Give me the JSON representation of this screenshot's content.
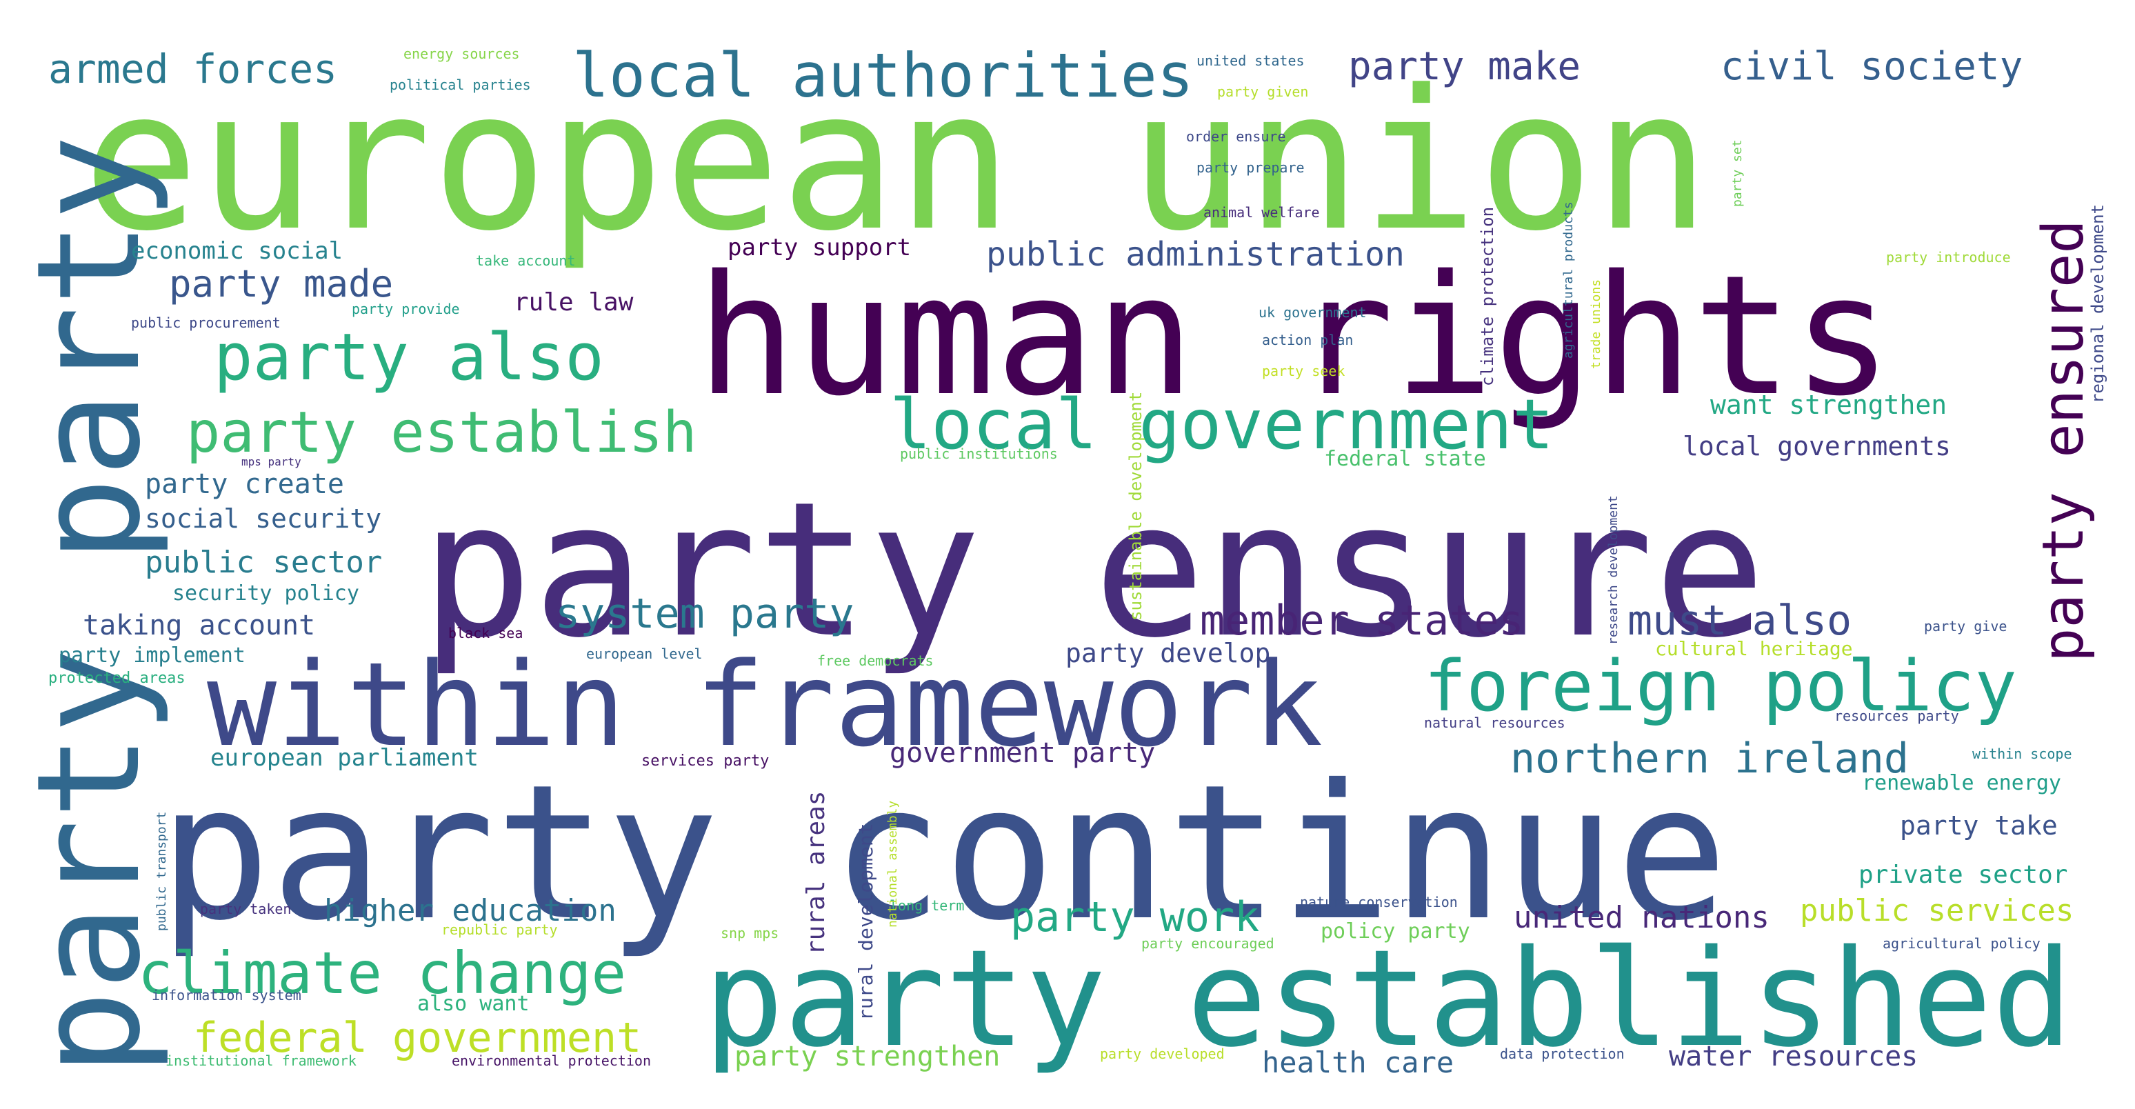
{
  "colors": {
    "background": "#ffffff",
    "palette": [
      "#440154",
      "#482878",
      "#3e4989",
      "#31688e",
      "#26828e",
      "#1f9e89",
      "#35b779",
      "#6ece58",
      "#b5de2b",
      "#fde725"
    ]
  },
  "words": [
    {
      "text": "european union",
      "weight": 1.0,
      "color": "#7ad151"
    },
    {
      "text": "human rights",
      "weight": 0.86,
      "color": "#440154"
    },
    {
      "text": "party ensure",
      "weight": 0.95,
      "color": "#472d7b"
    },
    {
      "text": "party continue",
      "weight": 0.95,
      "color": "#3b528b"
    },
    {
      "text": "within framework",
      "weight": 0.62,
      "color": "#3e4989"
    },
    {
      "text": "party established",
      "weight": 0.7,
      "color": "#21918c"
    },
    {
      "text": "party party",
      "weight": 0.73,
      "color": "#31688e"
    },
    {
      "text": "local authorities",
      "weight": 0.32,
      "color": "#2c728e"
    },
    {
      "text": "local government",
      "weight": 0.35,
      "color": "#22a884"
    },
    {
      "text": "foreign policy",
      "weight": 0.36,
      "color": "#1fa187"
    },
    {
      "text": "party also",
      "weight": 0.33,
      "color": "#28ae80"
    },
    {
      "text": "party establish",
      "weight": 0.29,
      "color": "#3fbc73"
    },
    {
      "text": "climate change",
      "weight": 0.3,
      "color": "#2db27d"
    },
    {
      "text": "party ensured",
      "weight": 0.3,
      "color": "#440154"
    },
    {
      "text": "northern ireland",
      "weight": 0.2,
      "color": "#2c728e"
    },
    {
      "text": "member states",
      "weight": 0.2,
      "color": "#482475"
    },
    {
      "text": "must also",
      "weight": 0.2,
      "color": "#3e4a89"
    },
    {
      "text": "system party",
      "weight": 0.2,
      "color": "#2a788e"
    },
    {
      "text": "party work",
      "weight": 0.2,
      "color": "#22a884"
    },
    {
      "text": "federal government",
      "weight": 0.2,
      "color": "#bddf26"
    },
    {
      "text": "armed forces",
      "weight": 0.2,
      "color": "#2a788e"
    },
    {
      "text": "party make",
      "weight": 0.18,
      "color": "#414487"
    },
    {
      "text": "civil society",
      "weight": 0.18,
      "color": "#355f8d"
    },
    {
      "text": "party made",
      "weight": 0.17,
      "color": "#39568c"
    },
    {
      "text": "public administration",
      "weight": 0.15,
      "color": "#3b528b"
    },
    {
      "text": "higher education",
      "weight": 0.14,
      "color": "#2c728e"
    },
    {
      "text": "united nations",
      "weight": 0.14,
      "color": "#482878"
    },
    {
      "text": "public services",
      "weight": 0.14,
      "color": "#b8de29"
    },
    {
      "text": "party strengthen",
      "weight": 0.12,
      "color": "#7ad151"
    },
    {
      "text": "health care",
      "weight": 0.13,
      "color": "#33638d"
    },
    {
      "text": "water resources",
      "weight": 0.12,
      "color": "#433e85"
    },
    {
      "text": "government party",
      "weight": 0.12,
      "color": "#482878"
    },
    {
      "text": "european parliament",
      "weight": 0.1,
      "color": "#25848e"
    },
    {
      "text": "taking account",
      "weight": 0.12,
      "color": "#3b528b"
    },
    {
      "text": "public sector",
      "weight": 0.13,
      "color": "#287c8e"
    },
    {
      "text": "social security",
      "weight": 0.11,
      "color": "#355f8d"
    },
    {
      "text": "party create",
      "weight": 0.12,
      "color": "#31688e"
    },
    {
      "text": "want strengthen",
      "weight": 0.11,
      "color": "#22a884"
    },
    {
      "text": "local governments",
      "weight": 0.11,
      "color": "#433e85"
    },
    {
      "text": "party develop",
      "weight": 0.11,
      "color": "#3e4989"
    },
    {
      "text": "private sector",
      "weight": 0.1,
      "color": "#1fa187"
    },
    {
      "text": "party take",
      "weight": 0.1,
      "color": "#3b528b"
    },
    {
      "text": "renewable energy",
      "weight": 0.09,
      "color": "#1f9e89"
    },
    {
      "text": "rule law",
      "weight": 0.1,
      "color": "#471164"
    },
    {
      "text": "party support",
      "weight": 0.09,
      "color": "#440154"
    },
    {
      "text": "economic social",
      "weight": 0.09,
      "color": "#26828e"
    },
    {
      "text": "security policy",
      "weight": 0.08,
      "color": "#26828e"
    },
    {
      "text": "party implement",
      "weight": 0.08,
      "color": "#277f8e"
    },
    {
      "text": "policy party",
      "weight": 0.08,
      "color": "#6ece58"
    },
    {
      "text": "also want",
      "weight": 0.08,
      "color": "#2db27d"
    },
    {
      "text": "federal state",
      "weight": 0.08,
      "color": "#4ac16d"
    },
    {
      "text": "cultural heritage",
      "weight": 0.07,
      "color": "#b5de2b"
    },
    {
      "text": "rural areas",
      "weight": 0.09,
      "color": "#46327e"
    },
    {
      "text": "rural development",
      "weight": 0.07,
      "color": "#3e4989"
    },
    {
      "text": "sustainable development",
      "weight": 0.07,
      "color": "#a0da39"
    },
    {
      "text": "climate protection",
      "weight": 0.07,
      "color": "#46327e"
    },
    {
      "text": "regional development",
      "weight": 0.07,
      "color": "#3e4989"
    },
    {
      "text": "energy sources",
      "weight": 0.05,
      "color": "#86d549"
    },
    {
      "text": "political parties",
      "weight": 0.05,
      "color": "#26828e"
    },
    {
      "text": "united states",
      "weight": 0.05,
      "color": "#31688e"
    },
    {
      "text": "party given",
      "weight": 0.05,
      "color": "#b5de2b"
    },
    {
      "text": "order ensure",
      "weight": 0.05,
      "color": "#3e4989"
    },
    {
      "text": "party prepare",
      "weight": 0.05,
      "color": "#33638d"
    },
    {
      "text": "animal welfare",
      "weight": 0.05,
      "color": "#472d7b"
    },
    {
      "text": "take account",
      "weight": 0.05,
      "color": "#35b779"
    },
    {
      "text": "party provide",
      "weight": 0.05,
      "color": "#1f9e89"
    },
    {
      "text": "public procurement",
      "weight": 0.05,
      "color": "#3e4989"
    },
    {
      "text": "uk government",
      "weight": 0.05,
      "color": "#2c728e"
    },
    {
      "text": "action plan",
      "weight": 0.05,
      "color": "#355f8d"
    },
    {
      "text": "party seek",
      "weight": 0.05,
      "color": "#c2df23"
    },
    {
      "text": "public institutions",
      "weight": 0.05,
      "color": "#5ec962"
    },
    {
      "text": "mps party",
      "weight": 0.04,
      "color": "#46327e"
    },
    {
      "text": "black sea",
      "weight": 0.05,
      "color": "#440154"
    },
    {
      "text": "european level",
      "weight": 0.05,
      "color": "#31688e"
    },
    {
      "text": "free democrats",
      "weight": 0.05,
      "color": "#5ec962"
    },
    {
      "text": "protected areas",
      "weight": 0.05,
      "color": "#29af7f"
    },
    {
      "text": "services party",
      "weight": 0.05,
      "color": "#471164"
    },
    {
      "text": "natural resources",
      "weight": 0.05,
      "color": "#433e85"
    },
    {
      "text": "resources party",
      "weight": 0.05,
      "color": "#3e4989"
    },
    {
      "text": "within scope",
      "weight": 0.05,
      "color": "#26828e"
    },
    {
      "text": "party give",
      "weight": 0.05,
      "color": "#3b528b"
    },
    {
      "text": "party introduce",
      "weight": 0.05,
      "color": "#a0da39"
    },
    {
      "text": "party taken",
      "weight": 0.05,
      "color": "#46327e"
    },
    {
      "text": "republic party",
      "weight": 0.05,
      "color": "#b5de2b"
    },
    {
      "text": "snp mps",
      "weight": 0.05,
      "color": "#86d549"
    },
    {
      "text": "long term",
      "weight": 0.05,
      "color": "#35b779"
    },
    {
      "text": "nature conservation",
      "weight": 0.05,
      "color": "#3b528b"
    },
    {
      "text": "party encouraged",
      "weight": 0.05,
      "color": "#6ece58"
    },
    {
      "text": "agricultural policy",
      "weight": 0.05,
      "color": "#3b528b"
    },
    {
      "text": "information system",
      "weight": 0.05,
      "color": "#3b528b"
    },
    {
      "text": "institutional framework",
      "weight": 0.05,
      "color": "#3fbc73"
    },
    {
      "text": "environmental protection",
      "weight": 0.05,
      "color": "#481668"
    },
    {
      "text": "party developed",
      "weight": 0.05,
      "color": "#b8de29"
    },
    {
      "text": "data protection",
      "weight": 0.05,
      "color": "#3b528b"
    },
    {
      "text": "public transport",
      "weight": 0.05,
      "color": "#31688e"
    },
    {
      "text": "national assembly",
      "weight": 0.05,
      "color": "#b5de2b"
    },
    {
      "text": "agricultural products",
      "weight": 0.05,
      "color": "#31688e"
    },
    {
      "text": "trade unions",
      "weight": 0.05,
      "color": "#c2df23"
    },
    {
      "text": "party set",
      "weight": 0.05,
      "color": "#6ece58"
    },
    {
      "text": "research development",
      "weight": 0.05,
      "color": "#3e4989"
    }
  ]
}
